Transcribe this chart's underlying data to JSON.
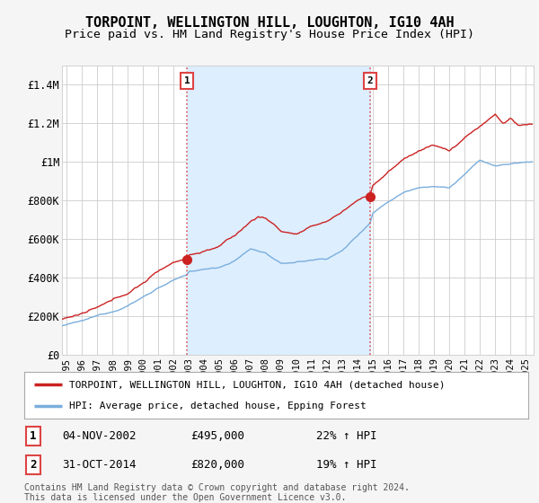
{
  "title": "TORPOINT, WELLINGTON HILL, LOUGHTON, IG10 4AH",
  "subtitle": "Price paid vs. HM Land Registry's House Price Index (HPI)",
  "ylabel_ticks": [
    "£0",
    "£200K",
    "£400K",
    "£600K",
    "£800K",
    "£1M",
    "£1.2M",
    "£1.4M"
  ],
  "ytick_values": [
    0,
    200000,
    400000,
    600000,
    800000,
    1000000,
    1200000,
    1400000
  ],
  "ylim": [
    0,
    1500000
  ],
  "xlim_start": 1994.7,
  "xlim_end": 2025.5,
  "marker1_x": 2002.85,
  "marker1_y": 495000,
  "marker2_x": 2014.83,
  "marker2_y": 820000,
  "legend_line1": "TORPOINT, WELLINGTON HILL, LOUGHTON, IG10 4AH (detached house)",
  "legend_line2": "HPI: Average price, detached house, Epping Forest",
  "table_row1": [
    "1",
    "04-NOV-2002",
    "£495,000",
    "22% ↑ HPI"
  ],
  "table_row2": [
    "2",
    "31-OCT-2014",
    "£820,000",
    "19% ↑ HPI"
  ],
  "footer": "Contains HM Land Registry data © Crown copyright and database right 2024.\nThis data is licensed under the Open Government Licence v3.0.",
  "line_color_red": "#cc2222",
  "line_color_blue": "#7aaedc",
  "vline_color": "#dd4444",
  "shade_color": "#ddeeff",
  "bg_color": "#f5f5f5",
  "plot_bg_color": "#ffffff",
  "grid_color": "#cccccc",
  "title_fontsize": 11,
  "subtitle_fontsize": 9.5
}
